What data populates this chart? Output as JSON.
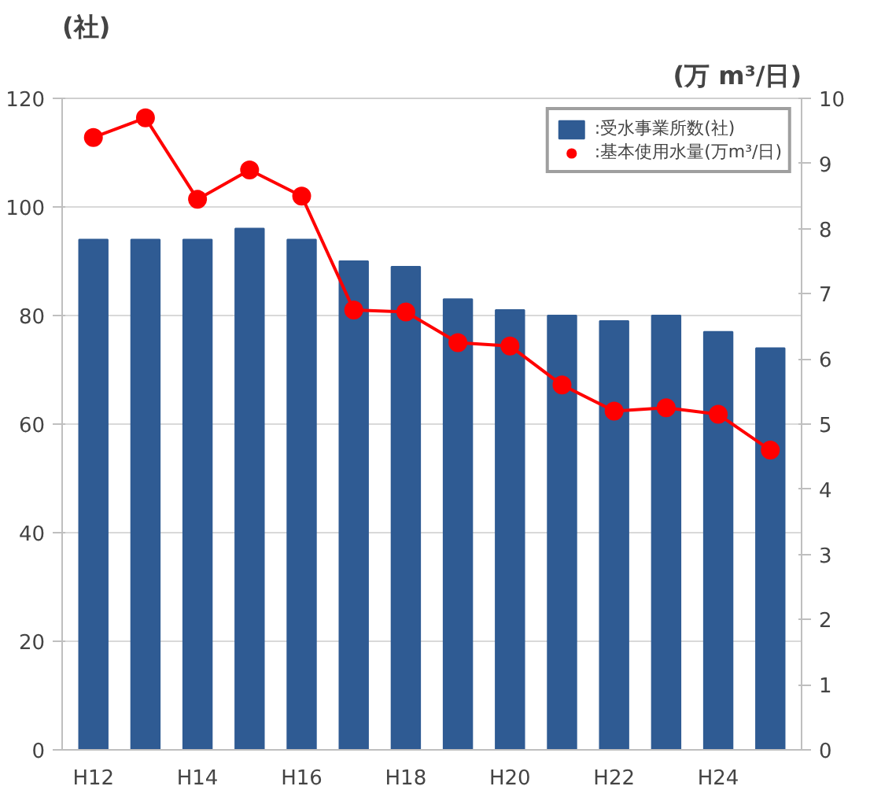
{
  "chart_data": {
    "type": "bar",
    "ylabel": "(社)",
    "y2label": "(万 m³/日)",
    "categories": [
      "H12",
      null,
      "H14",
      null,
      "H16",
      null,
      "H18",
      null,
      "H20",
      null,
      "H22",
      null,
      "H24",
      null
    ],
    "series": [
      {
        "name": ":受水事業所数(社)",
        "color": "#2f5b93",
        "values": [
          94,
          94,
          94,
          96,
          94,
          90,
          89,
          83,
          81,
          80,
          79,
          80,
          77,
          74
        ]
      },
      {
        "name": ":基本使用水量(万m³/日)",
        "type": "line",
        "axis": "y2",
        "color": "#ff0000",
        "marker": "circle",
        "values": [
          9.4,
          9.7,
          8.45,
          8.9,
          8.5,
          6.75,
          6.72,
          6.25,
          6.2,
          5.6,
          5.2,
          5.25,
          5.15,
          4.6
        ]
      }
    ],
    "ylim": [
      0,
      120
    ],
    "yticks": [
      0,
      20,
      40,
      60,
      80,
      100,
      120
    ],
    "y2lim": [
      0,
      10
    ],
    "y2ticks": [
      0,
      1,
      2,
      3,
      4,
      5,
      6,
      7,
      8,
      9,
      10
    ],
    "grid": "y",
    "legend": "top right"
  }
}
